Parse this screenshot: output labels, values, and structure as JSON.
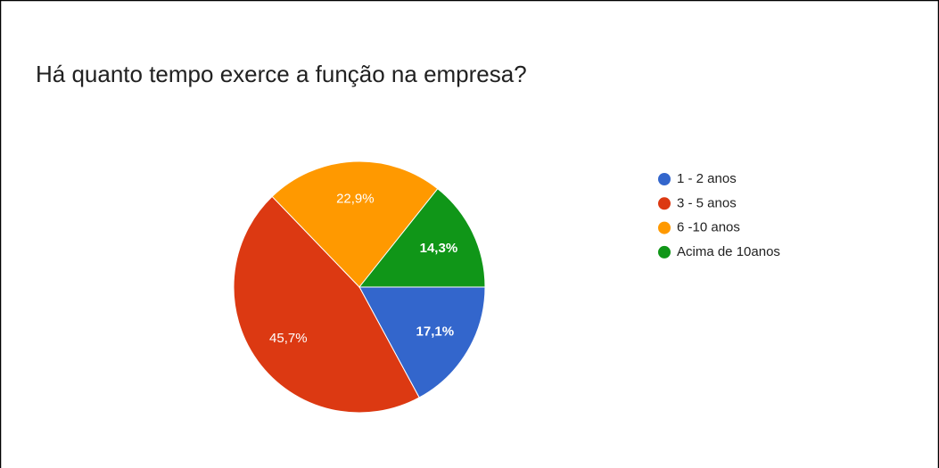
{
  "chart_data": {
    "type": "pie",
    "title": "Há quanto tempo exerce a função na empresa?",
    "categories": [
      "1 - 2 anos",
      "3 - 5 anos",
      "6 -10 anos",
      "Acima de 10anos"
    ],
    "values": [
      17.1,
      45.7,
      22.9,
      14.3
    ],
    "value_labels": [
      "17,1%",
      "45,7%",
      "22,9%",
      "14,3%"
    ],
    "colors": [
      "#3366cc",
      "#dc3912",
      "#ff9900",
      "#109618"
    ]
  }
}
